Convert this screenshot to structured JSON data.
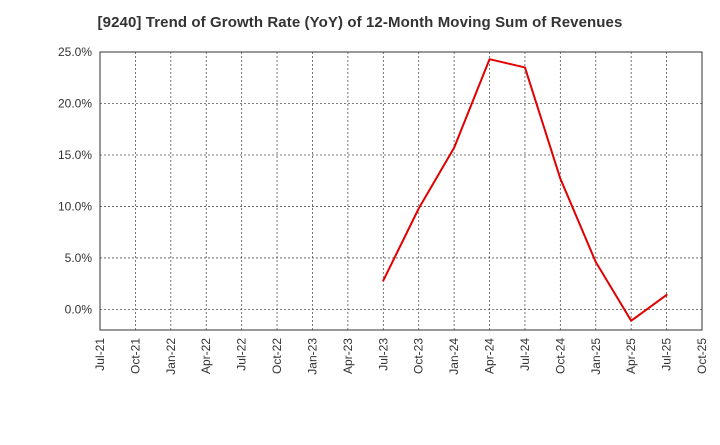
{
  "chart_data": {
    "type": "line",
    "title": "[9240]  Trend of Growth Rate (YoY) of 12-Month Moving Sum of Revenues",
    "xlabel": "",
    "ylabel": "",
    "categories": [
      "Jul-21",
      "Oct-21",
      "Jan-22",
      "Apr-22",
      "Jul-22",
      "Oct-22",
      "Jan-23",
      "Apr-23",
      "Jul-23",
      "Oct-23",
      "Jan-24",
      "Apr-24",
      "Jul-24",
      "Oct-24",
      "Jan-25",
      "Apr-25",
      "Jul-25",
      "Oct-25"
    ],
    "y_ticks": [
      "25.0%",
      "20.0%",
      "15.0%",
      "10.0%",
      "5.0%",
      "0.0%"
    ],
    "ylim": [
      -2.0,
      25.0
    ],
    "grid": true,
    "series": [
      {
        "color": "#e00000",
        "x": [
          "Jul-23",
          "Oct-23",
          "Jan-24",
          "Apr-24",
          "Jul-24",
          "Oct-24",
          "Jan-25",
          "Apr-25",
          "Jul-25"
        ],
        "values": [
          2.8,
          9.8,
          15.7,
          24.3,
          23.5,
          12.7,
          4.6,
          -1.1,
          1.4
        ]
      }
    ]
  }
}
